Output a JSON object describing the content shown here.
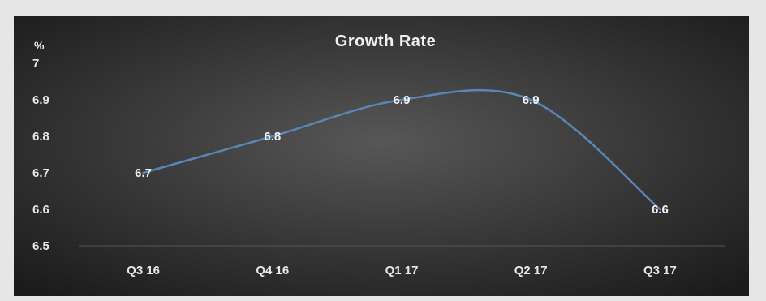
{
  "chart_data": {
    "type": "line",
    "title": "Growth Rate",
    "ylabel": "%",
    "xlabel": "",
    "categories": [
      "Q3 16",
      "Q4 16",
      "Q1 17",
      "Q2 17",
      "Q3 17"
    ],
    "values": [
      6.7,
      6.8,
      6.9,
      6.9,
      6.6
    ],
    "data_labels": [
      "6.7",
      "6.8",
      "6.9",
      "6.9",
      "6.6"
    ],
    "yticks": [
      "6.5",
      "6.6",
      "6.7",
      "6.8",
      "6.9",
      "7"
    ],
    "ylim": [
      6.5,
      7.0
    ],
    "grid": false,
    "smooth": true,
    "line_color": "#5b86b8"
  }
}
